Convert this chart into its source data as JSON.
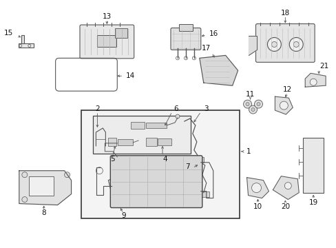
{
  "background_color": "#ffffff",
  "line_color": "#555555",
  "label_color": "#111111",
  "label_fontsize": 7.5,
  "fig_w": 4.89,
  "fig_h": 3.6,
  "dpi": 100
}
